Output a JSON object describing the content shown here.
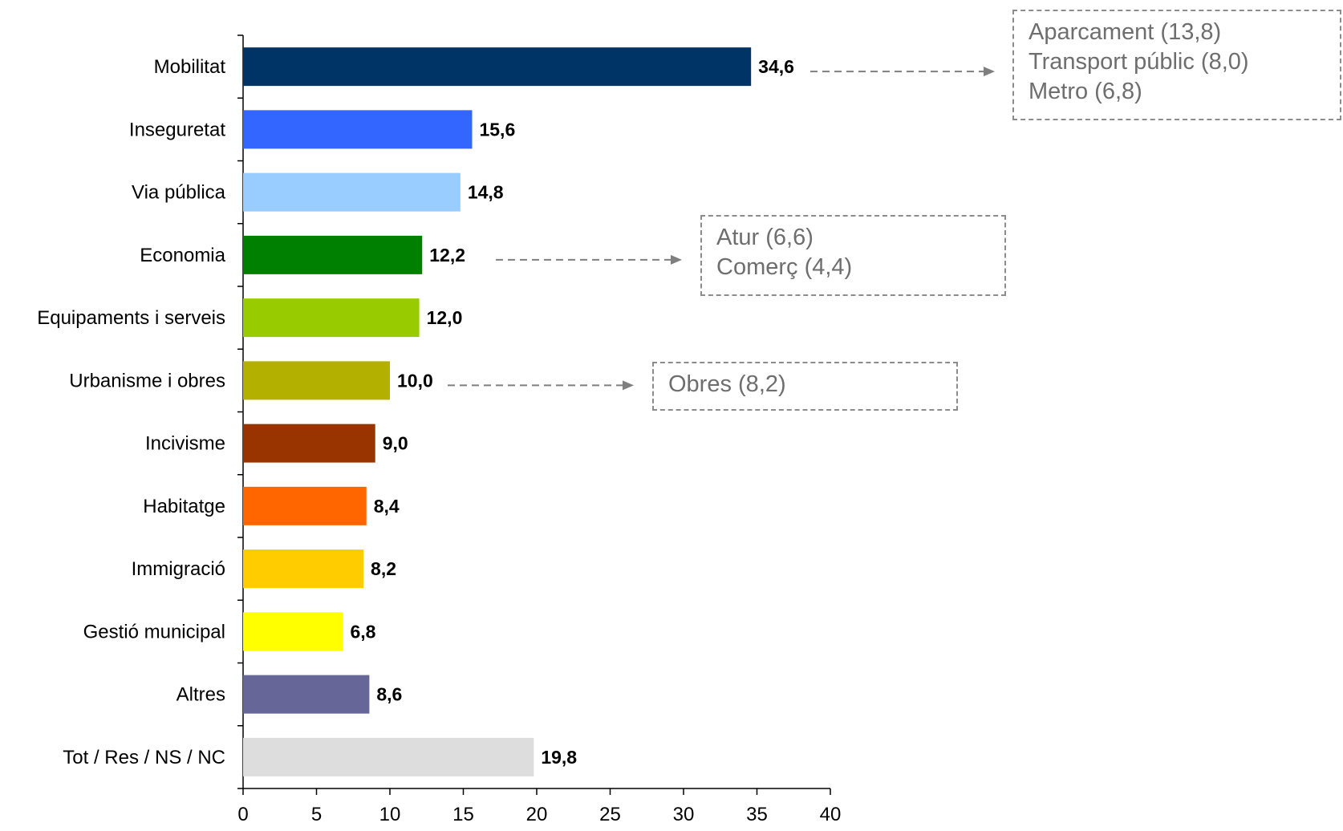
{
  "chart_data": {
    "type": "bar",
    "orientation": "horizontal",
    "categories": [
      "Mobilitat",
      "Inseguretat",
      "Via pública",
      "Economia",
      "Equipaments i serveis",
      "Urbanisme i obres",
      "Incivisme",
      "Habitatge",
      "Immigració",
      "Gestió municipal",
      "Altres",
      "Tot / Res / NS / NC"
    ],
    "values": [
      34.6,
      15.6,
      14.8,
      12.2,
      12.0,
      10.0,
      9.0,
      8.4,
      8.2,
      6.8,
      8.6,
      19.8
    ],
    "value_labels": [
      "34,6",
      "15,6",
      "14,8",
      "12,2",
      "12,0",
      "10,0",
      "9,0",
      "8,4",
      "8,2",
      "6,8",
      "8,6",
      "19,8"
    ],
    "colors": [
      "#003366",
      "#3366ff",
      "#99ccff",
      "#008000",
      "#99cc00",
      "#b3b000",
      "#993300",
      "#ff6600",
      "#ffcc00",
      "#ffff00",
      "#666699",
      "#dddddd"
    ],
    "xlim": [
      0,
      40
    ],
    "x_ticks": [
      "0",
      "5",
      "10",
      "15",
      "20",
      "25",
      "30",
      "35",
      "40"
    ],
    "grid": false,
    "title": "",
    "xlabel": "",
    "ylabel": ""
  },
  "annotations": [
    {
      "category": "Mobilitat",
      "lines": [
        "Aparcament (13,8)",
        "Transport públic (8,0)",
        "Metro (6,8)"
      ]
    },
    {
      "category": "Economia",
      "lines": [
        "Atur (6,6)",
        "Comerç (4,4)"
      ]
    },
    {
      "category": "Urbanisme i obres",
      "lines": [
        "Obres (8,2)"
      ]
    }
  ]
}
